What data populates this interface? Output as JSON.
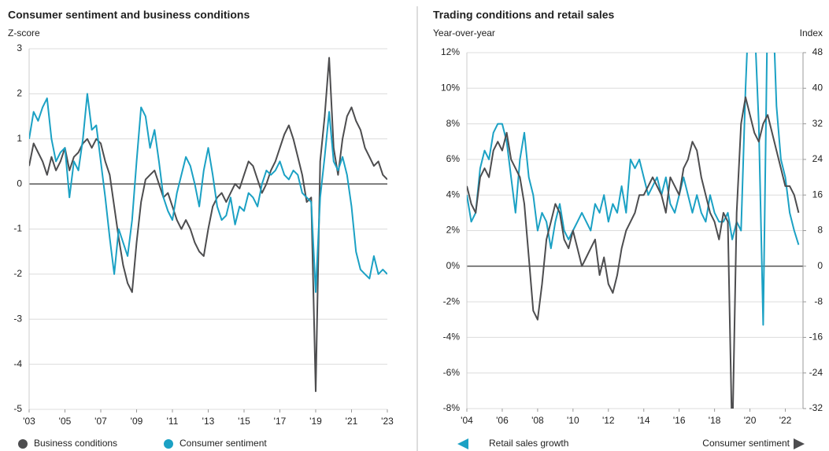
{
  "chart_data": [
    {
      "type": "line",
      "title": "Consumer sentiment and business conditions",
      "y_label": "Z-score",
      "x": [
        2003,
        2003.25,
        2003.5,
        2003.75,
        2004,
        2004.25,
        2004.5,
        2004.75,
        2005,
        2005.25,
        2005.5,
        2005.75,
        2006,
        2006.25,
        2006.5,
        2006.75,
        2007,
        2007.25,
        2007.5,
        2007.75,
        2008,
        2008.25,
        2008.5,
        2008.75,
        2009,
        2009.25,
        2009.5,
        2009.75,
        2010,
        2010.25,
        2010.5,
        2010.75,
        2011,
        2011.25,
        2011.5,
        2011.75,
        2012,
        2012.25,
        2012.5,
        2012.75,
        2013,
        2013.25,
        2013.5,
        2013.75,
        2014,
        2014.25,
        2014.5,
        2014.75,
        2015,
        2015.25,
        2015.5,
        2015.75,
        2016,
        2016.25,
        2016.5,
        2016.75,
        2017,
        2017.25,
        2017.5,
        2017.75,
        2018,
        2018.25,
        2018.5,
        2018.75,
        2019,
        2019.25,
        2019.5,
        2019.75,
        2020,
        2020.25,
        2020.5,
        2020.75,
        2021,
        2021.25,
        2021.5,
        2021.75,
        2022,
        2022.25,
        2022.5,
        2022.75,
        2023
      ],
      "xlim": [
        2003,
        2023
      ],
      "xticks": [
        {
          "value": 2003,
          "label": "'03"
        },
        {
          "value": 2005,
          "label": "'05"
        },
        {
          "value": 2007,
          "label": "'07"
        },
        {
          "value": 2009,
          "label": "'09"
        },
        {
          "value": 2011,
          "label": "'11"
        },
        {
          "value": 2013,
          "label": "'13"
        },
        {
          "value": 2015,
          "label": "'15"
        },
        {
          "value": 2017,
          "label": "'17"
        },
        {
          "value": 2019,
          "label": "'19"
        },
        {
          "value": 2021,
          "label": "'21"
        },
        {
          "value": 2023,
          "label": "'23"
        }
      ],
      "ylim": [
        -5,
        3
      ],
      "yticks": [
        -5,
        -4,
        -3,
        -2,
        -1,
        0,
        1,
        2,
        3
      ],
      "grid": true,
      "series": [
        {
          "name": "Business conditions",
          "color": "#4d4d4f",
          "values": [
            0.4,
            0.9,
            0.7,
            0.5,
            0.2,
            0.6,
            0.3,
            0.5,
            0.8,
            0.3,
            0.6,
            0.7,
            0.9,
            1.0,
            0.8,
            1.0,
            0.9,
            0.5,
            0.2,
            -0.5,
            -1.2,
            -1.8,
            -2.2,
            -2.4,
            -1.3,
            -0.4,
            0.1,
            0.2,
            0.3,
            0.0,
            -0.3,
            -0.2,
            -0.5,
            -0.8,
            -1.0,
            -0.8,
            -1.0,
            -1.3,
            -1.5,
            -1.6,
            -1.0,
            -0.5,
            -0.3,
            -0.2,
            -0.4,
            -0.2,
            0.0,
            -0.1,
            0.2,
            0.5,
            0.4,
            0.1,
            -0.2,
            0.0,
            0.3,
            0.5,
            0.8,
            1.1,
            1.3,
            1.0,
            0.6,
            0.2,
            -0.4,
            -0.3,
            -4.6,
            0.5,
            1.5,
            2.8,
            0.8,
            0.2,
            1.0,
            1.5,
            1.7,
            1.4,
            1.2,
            0.8,
            0.6,
            0.4,
            0.5,
            0.2,
            0.1
          ]
        },
        {
          "name": "Consumer sentiment",
          "color": "#1ba1c4",
          "values": [
            1.0,
            1.6,
            1.4,
            1.7,
            1.9,
            1.0,
            0.5,
            0.7,
            0.8,
            -0.3,
            0.5,
            0.3,
            1.0,
            2.0,
            1.2,
            1.3,
            0.5,
            -0.3,
            -1.2,
            -2.0,
            -1.0,
            -1.3,
            -1.6,
            -0.8,
            0.5,
            1.7,
            1.5,
            0.8,
            1.2,
            0.5,
            -0.3,
            -0.6,
            -0.8,
            -0.2,
            0.2,
            0.6,
            0.4,
            0.0,
            -0.5,
            0.3,
            0.8,
            0.2,
            -0.5,
            -0.8,
            -0.7,
            -0.3,
            -0.9,
            -0.5,
            -0.6,
            -0.2,
            -0.3,
            -0.5,
            0.0,
            0.3,
            0.2,
            0.3,
            0.5,
            0.2,
            0.1,
            0.3,
            0.2,
            -0.2,
            -0.3,
            -0.4,
            -2.4,
            -0.3,
            0.6,
            1.6,
            0.5,
            0.3,
            0.6,
            0.2,
            -0.5,
            -1.5,
            -1.9,
            -2.0,
            -2.1,
            -1.6,
            -2.0,
            -1.9,
            -2.0
          ]
        }
      ]
    },
    {
      "type": "line",
      "title": "Trading conditions and retail sales",
      "y_label": "Year-over-year",
      "y2_label": "Index",
      "x": [
        2004,
        2004.25,
        2004.5,
        2004.75,
        2005,
        2005.25,
        2005.5,
        2005.75,
        2006,
        2006.25,
        2006.5,
        2006.75,
        2007,
        2007.25,
        2007.5,
        2007.75,
        2008,
        2008.25,
        2008.5,
        2008.75,
        2009,
        2009.25,
        2009.5,
        2009.75,
        2010,
        2010.25,
        2010.5,
        2010.75,
        2011,
        2011.25,
        2011.5,
        2011.75,
        2012,
        2012.25,
        2012.5,
        2012.75,
        2013,
        2013.25,
        2013.5,
        2013.75,
        2014,
        2014.25,
        2014.5,
        2014.75,
        2015,
        2015.25,
        2015.5,
        2015.75,
        2016,
        2016.25,
        2016.5,
        2016.75,
        2017,
        2017.25,
        2017.5,
        2017.75,
        2018,
        2018.25,
        2018.5,
        2018.75,
        2019,
        2019.25,
        2019.5,
        2019.75,
        2020,
        2020.25,
        2020.5,
        2020.75,
        2021,
        2021.25,
        2021.5,
        2021.75,
        2022,
        2022.25,
        2022.5,
        2022.75
      ],
      "xlim": [
        2004,
        2023
      ],
      "xticks": [
        {
          "value": 2004,
          "label": "'04"
        },
        {
          "value": 2006,
          "label": "'06"
        },
        {
          "value": 2008,
          "label": "'08"
        },
        {
          "value": 2010,
          "label": "'10"
        },
        {
          "value": 2012,
          "label": "'12"
        },
        {
          "value": 2014,
          "label": "'14"
        },
        {
          "value": 2016,
          "label": "'16"
        },
        {
          "value": 2018,
          "label": "'18"
        },
        {
          "value": 2020,
          "label": "'20"
        },
        {
          "value": 2022,
          "label": "'22"
        }
      ],
      "ylim": [
        -8,
        12
      ],
      "yticks": [
        {
          "value": -8,
          "label": "-8%"
        },
        {
          "value": -6,
          "label": "-6%"
        },
        {
          "value": -4,
          "label": "-4%"
        },
        {
          "value": -2,
          "label": "-2%"
        },
        {
          "value": 0,
          "label": "0%"
        },
        {
          "value": 2,
          "label": "2%"
        },
        {
          "value": 4,
          "label": "4%"
        },
        {
          "value": 6,
          "label": "6%"
        },
        {
          "value": 8,
          "label": "8%"
        },
        {
          "value": 10,
          "label": "10%"
        },
        {
          "value": 12,
          "label": "12%"
        }
      ],
      "y2lim": [
        -32,
        48
      ],
      "y2ticks": [
        -32,
        -24,
        -16,
        -8,
        0,
        8,
        16,
        24,
        32,
        40,
        48
      ],
      "grid": true,
      "series": [
        {
          "name": "Retail sales growth",
          "color": "#1ba1c4",
          "axis": "y",
          "values": [
            4.0,
            2.5,
            3.0,
            5.5,
            6.5,
            6.0,
            7.5,
            8.0,
            8.0,
            7.0,
            5.0,
            3.0,
            6.0,
            7.5,
            5.0,
            4.0,
            2.0,
            3.0,
            2.5,
            1.0,
            2.5,
            3.5,
            2.0,
            1.5,
            2.0,
            2.5,
            3.0,
            2.5,
            2.0,
            3.5,
            3.0,
            4.0,
            2.5,
            3.5,
            3.0,
            4.5,
            3.0,
            6.0,
            5.5,
            6.0,
            5.0,
            4.0,
            4.5,
            5.0,
            4.0,
            5.0,
            3.5,
            3.0,
            4.0,
            5.0,
            4.0,
            3.0,
            4.0,
            3.0,
            2.5,
            4.0,
            3.0,
            2.5,
            2.5,
            3.0,
            1.5,
            2.5,
            2.0,
            10.0,
            16.0,
            14.0,
            8.0,
            -3.3,
            15.0,
            16.0,
            9.0,
            6.0,
            5.0,
            3.0,
            2.0,
            1.2
          ]
        },
        {
          "name": "Consumer sentiment",
          "color": "#4d4d4f",
          "axis": "y2",
          "values": [
            18,
            14,
            12,
            20,
            22,
            20,
            26,
            28,
            26,
            30,
            24,
            22,
            20,
            14,
            2,
            -10,
            -12,
            -4,
            6,
            10,
            14,
            12,
            6,
            4,
            8,
            4,
            0,
            2,
            4,
            6,
            -2,
            2,
            -4,
            -6,
            -2,
            4,
            8,
            10,
            12,
            16,
            16,
            18,
            20,
            18,
            16,
            12,
            20,
            18,
            16,
            22,
            24,
            28,
            26,
            20,
            16,
            12,
            10,
            6,
            12,
            10,
            -40,
            12,
            32,
            38,
            34,
            30,
            28,
            32,
            34,
            30,
            26,
            22,
            18,
            18,
            16,
            12
          ]
        }
      ]
    }
  ]
}
